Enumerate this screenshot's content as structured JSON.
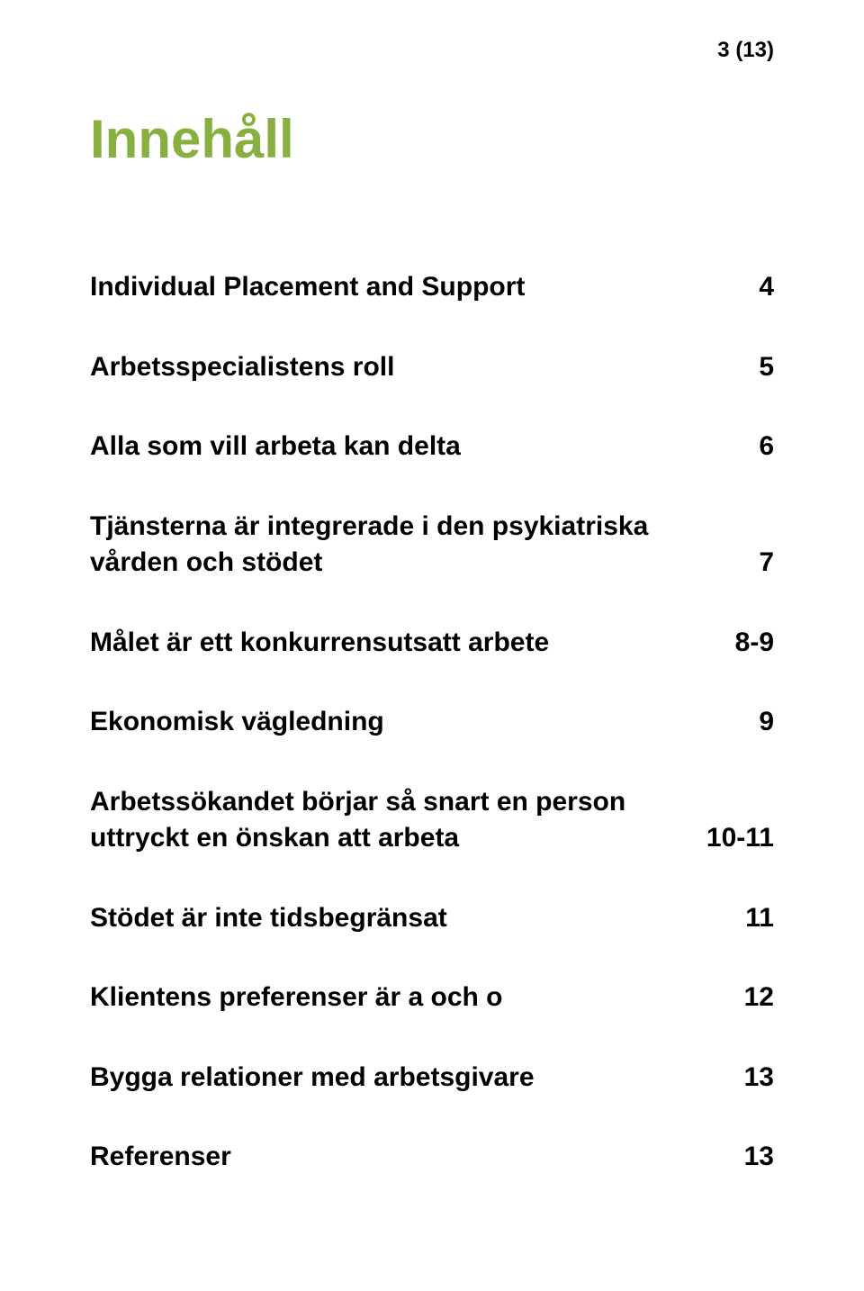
{
  "page_number": "3 (13)",
  "title": "Innehåll",
  "title_color": "#88b040",
  "text_color": "#000000",
  "background_color": "#ffffff",
  "title_fontsize": 60,
  "entry_fontsize": 30,
  "toc": [
    {
      "label": "Individual Placement and Support",
      "page": "4",
      "two_line": false
    },
    {
      "label": "Arbetsspecialistens roll",
      "page": "5",
      "two_line": false
    },
    {
      "label": "Alla som vill arbeta kan delta",
      "page": "6",
      "two_line": false
    },
    {
      "label": "Tjänsterna är integrerade i den psykiatriska vården och stödet",
      "page": "7",
      "two_line": true
    },
    {
      "label": "Målet är ett konkurrensutsatt arbete",
      "page": "8-9",
      "two_line": false
    },
    {
      "label": "Ekonomisk vägledning",
      "page": "9",
      "two_line": false
    },
    {
      "label": "Arbetssökandet börjar så snart en person uttryckt en önskan att arbeta",
      "page": "10-11",
      "two_line": true
    },
    {
      "label": "Stödet är inte tidsbegränsat",
      "page": "11",
      "two_line": false
    },
    {
      "label": "Klientens preferenser är a och o",
      "page": "12",
      "two_line": false
    },
    {
      "label": "Bygga relationer med arbetsgivare",
      "page": "13",
      "two_line": false
    },
    {
      "label": "Referenser",
      "page": "13",
      "two_line": false
    }
  ]
}
